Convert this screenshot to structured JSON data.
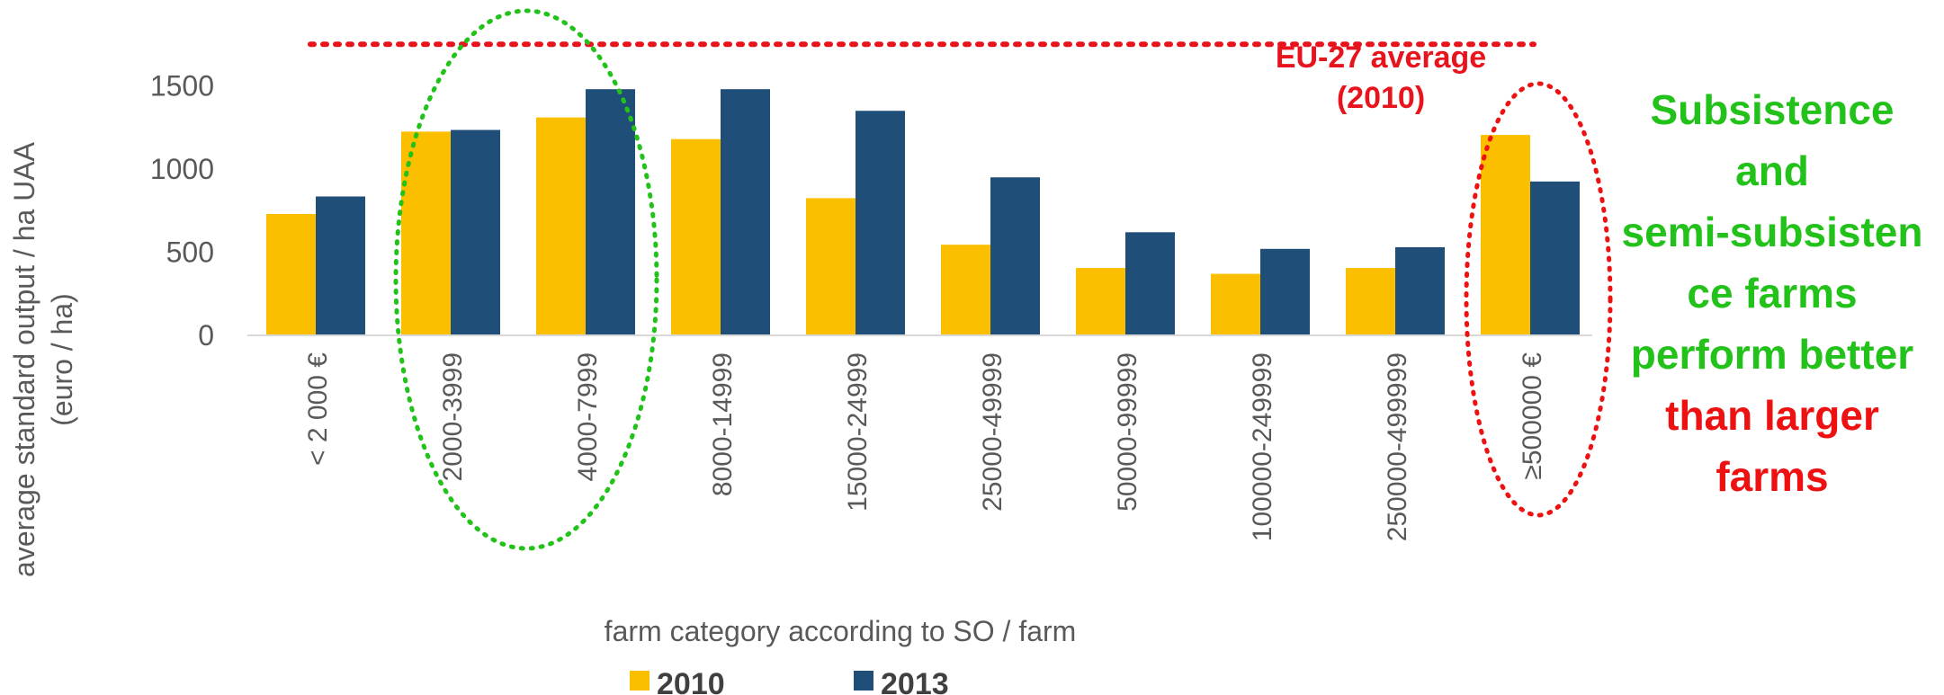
{
  "chart_data": {
    "type": "bar",
    "categories": [
      "< 2 000 €",
      "2000-3999",
      "4000-7999",
      "8000-14999",
      "15000-24999",
      "25000-49999",
      "50000-99999",
      "100000-249999",
      "250000-499999",
      "≥500000 €"
    ],
    "series": [
      {
        "name": "2010",
        "values": [
          730,
          1225,
          1310,
          1180,
          825,
          545,
          405,
          370,
          405,
          1205
        ],
        "color": "#fcbf00"
      },
      {
        "name": "2013",
        "values": [
          835,
          1235,
          1480,
          1480,
          1350,
          950,
          620,
          520,
          530,
          925
        ],
        "color": "#1f4e79"
      }
    ],
    "ylabel": "average standard output / ha UAA (euro / ha)",
    "xlabel": "farm category according to SO / farm",
    "yticks": [
      0,
      500,
      1000,
      1500
    ],
    "ylim": [
      0,
      1750
    ],
    "grid": false,
    "legend_position": "bottom",
    "reference_line": {
      "label_line1": "EU-27 average",
      "label_line2": "(2010)",
      "value": 1750,
      "color": "#e8141d",
      "style": "dotted"
    },
    "highlight_groups": [
      {
        "categories": [
          "2000-3999",
          "4000-7999"
        ],
        "color": "#22c21a",
        "style": "dotted-ellipse"
      },
      {
        "categories": [
          "≥500000 €"
        ],
        "color": "#ee1111",
        "style": "dotted-ellipse"
      }
    ]
  },
  "annotation": {
    "green_lines": [
      "Subsistence",
      "and",
      "semi-subsisten",
      "ce farms",
      "perform better"
    ],
    "red_lines": [
      "than larger",
      "farms"
    ]
  }
}
